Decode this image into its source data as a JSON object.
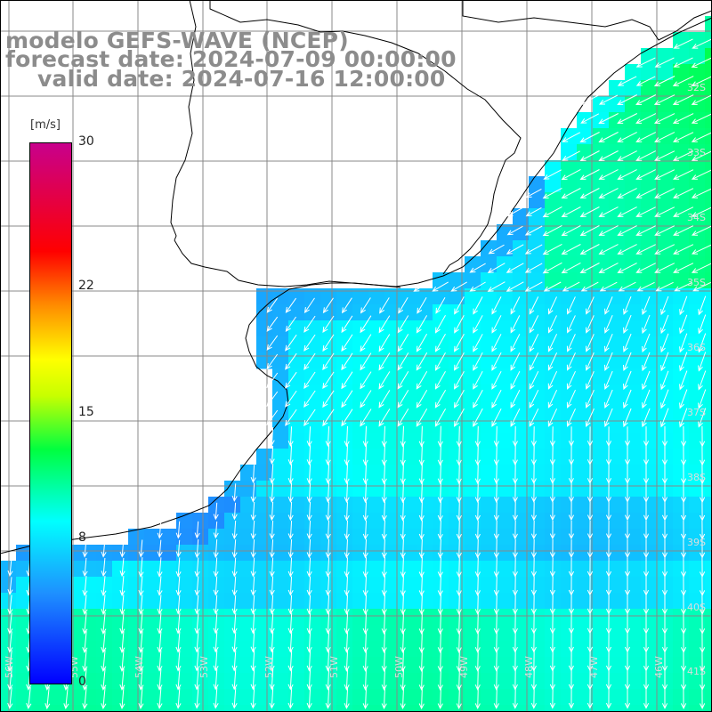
{
  "title": {
    "line1": "modelo GEFS-WAVE (NCEP)",
    "line2": "forecast date: 2024-07-09 00:00:00",
    "line3": "valid date: 2024-07-16 12:00:00"
  },
  "colorbar": {
    "unit": "[m/s]",
    "min": 0,
    "max": 30,
    "ticks": [
      {
        "label": "30",
        "value": 30
      },
      {
        "label": "22",
        "value": 22
      },
      {
        "label": "15",
        "value": 15
      },
      {
        "label": "8",
        "value": 8
      },
      {
        "label": "0",
        "value": 0
      }
    ],
    "stops": [
      {
        "value": 0,
        "color": "#0000ff"
      },
      {
        "value": 5,
        "color": "#1e90ff"
      },
      {
        "value": 9,
        "color": "#00ffff"
      },
      {
        "value": 13,
        "color": "#00ff40"
      },
      {
        "value": 16,
        "color": "#c8ff00"
      },
      {
        "value": 18,
        "color": "#ffff00"
      },
      {
        "value": 21,
        "color": "#ff8c00"
      },
      {
        "value": 24,
        "color": "#ff0000"
      },
      {
        "value": 30,
        "color": "#c8008c"
      }
    ]
  },
  "lat_labels": [
    "32S",
    "33S",
    "34S",
    "35S",
    "36S",
    "37S",
    "38S",
    "39S",
    "40S",
    "41S"
  ],
  "lon_labels": [
    "56W",
    "55W",
    "54W",
    "53W",
    "52W",
    "51W",
    "50W",
    "49W",
    "48W",
    "47W",
    "46W"
  ],
  "colors": {
    "land": "#ffffff",
    "coastline": "#000000",
    "grid": "#888888",
    "arrows": "#ffffff",
    "title_text": "#8c8c8c"
  }
}
